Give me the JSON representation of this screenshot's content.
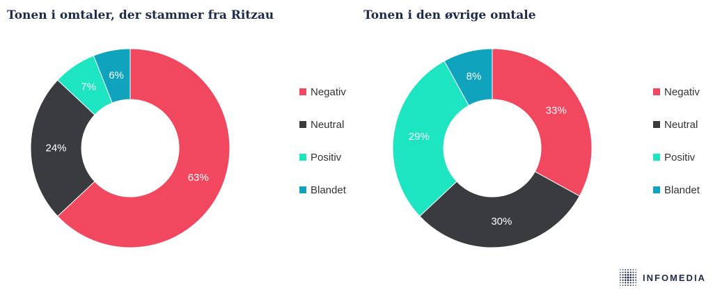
{
  "chart_data": [
    {
      "type": "pie",
      "style": "donut",
      "title": "Tonen i omtaler, der stammer fra Ritzau",
      "categories": [
        "Negativ",
        "Neutral",
        "Positiv",
        "Blandet"
      ],
      "values": [
        63,
        24,
        7,
        6
      ],
      "value_labels": [
        "63%",
        "24%",
        "7%",
        "6%"
      ],
      "legend": "right"
    },
    {
      "type": "pie",
      "style": "donut",
      "title": "Tonen i den øvrige omtale",
      "categories": [
        "Negativ",
        "Neutral",
        "Positiv",
        "Blandet"
      ],
      "values": [
        33,
        30,
        29,
        8
      ],
      "value_labels": [
        "33%",
        "30%",
        "29%",
        "8%"
      ],
      "legend": "right"
    }
  ],
  "colors": {
    "Negativ": "#f2485f",
    "Neutral": "#3a3b3f",
    "Positiv": "#1de5c1",
    "Blandet": "#0fa3bd"
  },
  "brand": {
    "name": "INFOMEDIA",
    "logo_icon": "infomedia-dot-grid-icon"
  }
}
